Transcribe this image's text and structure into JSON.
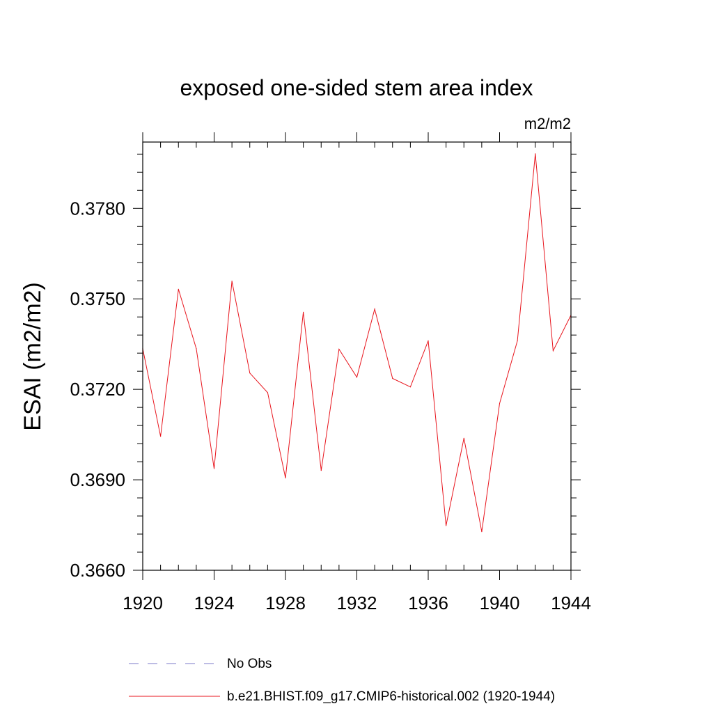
{
  "chart_data": {
    "type": "line",
    "title": "exposed one-sided stem area index",
    "units_label": "m2/m2",
    "ylabel": "ESAI  (m2/m2)",
    "xlabel": "",
    "xlim": [
      1920,
      1944
    ],
    "ylim": [
      0.366,
      0.3802
    ],
    "x_ticks": [
      1920,
      1924,
      1928,
      1932,
      1936,
      1940,
      1944
    ],
    "x_tick_labels": [
      "1920",
      "1924",
      "1928",
      "1932",
      "1936",
      "1940",
      "1944"
    ],
    "x_minor_ticks": [
      1921,
      1922,
      1923,
      1925,
      1926,
      1927,
      1929,
      1930,
      1931,
      1933,
      1934,
      1935,
      1937,
      1938,
      1939,
      1941,
      1942,
      1943
    ],
    "y_ticks": [
      0.366,
      0.369,
      0.372,
      0.375,
      0.378
    ],
    "y_tick_labels": [
      "0.3660",
      "0.3690",
      "0.3720",
      "0.3750",
      "0.3780"
    ],
    "y_minor_ticks": [
      0.3666,
      0.3672,
      0.3678,
      0.3684,
      0.3696,
      0.3702,
      0.3708,
      0.3714,
      0.3726,
      0.3732,
      0.3738,
      0.3744,
      0.3756,
      0.3762,
      0.3768,
      0.3774,
      0.3786,
      0.3792,
      0.3798
    ],
    "grid": false,
    "legend_position": "bottom",
    "series": [
      {
        "name": "b.e21.BHIST.f09_g17.CMIP6-historical.002 (1920-1944)",
        "color": "#e8141c",
        "style": "solid",
        "x": [
          1920,
          1921,
          1922,
          1923,
          1924,
          1925,
          1926,
          1927,
          1928,
          1929,
          1930,
          1931,
          1932,
          1933,
          1934,
          1935,
          1936,
          1937,
          1938,
          1939,
          1940,
          1941,
          1942,
          1943,
          1944
        ],
        "values": [
          0.37335,
          0.37044,
          0.37532,
          0.37335,
          0.36937,
          0.37559,
          0.37254,
          0.37189,
          0.36906,
          0.37456,
          0.36931,
          0.37333,
          0.3724,
          0.37466,
          0.37236,
          0.37208,
          0.37361,
          0.36748,
          0.37038,
          0.36728,
          0.37153,
          0.37361,
          0.37981,
          0.37328,
          0.37446
        ]
      },
      {
        "name": "No Obs",
        "color": "#7b78c8",
        "style": "dashed",
        "x": [],
        "values": []
      }
    ]
  }
}
